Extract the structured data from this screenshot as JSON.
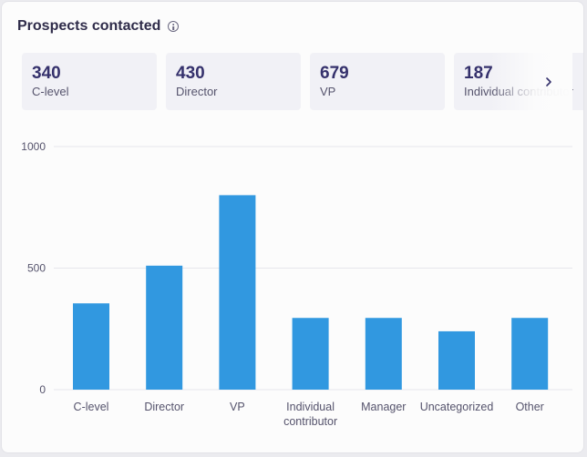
{
  "header": {
    "title": "Prospects contacted",
    "info_icon": "info-icon"
  },
  "stats": [
    {
      "value": "340",
      "label": "C-level"
    },
    {
      "value": "430",
      "label": "Director"
    },
    {
      "value": "679",
      "label": "VP"
    },
    {
      "value": "187",
      "label": "Individual contributor"
    }
  ],
  "next_icon": "chevron-right-icon",
  "colors": {
    "bar": "#3198e0",
    "grid": "#e6e6ec",
    "stat_value": "#35316c",
    "title": "#2f2c4a"
  },
  "chart_data": {
    "type": "bar",
    "categories": [
      "C-level",
      "Director",
      "VP",
      "Individual contributor",
      "Manager",
      "Uncategorized",
      "Other"
    ],
    "category_lines": [
      [
        "C-level"
      ],
      [
        "Director"
      ],
      [
        "VP"
      ],
      [
        "Individual",
        "contributor"
      ],
      [
        "Manager"
      ],
      [
        "Uncategorized"
      ],
      [
        "Other"
      ]
    ],
    "values": [
      355,
      510,
      800,
      295,
      295,
      240,
      295
    ],
    "ylim": [
      0,
      1000
    ],
    "yticks": [
      0,
      500,
      1000
    ],
    "grid": true,
    "title": "",
    "xlabel": "",
    "ylabel": ""
  }
}
